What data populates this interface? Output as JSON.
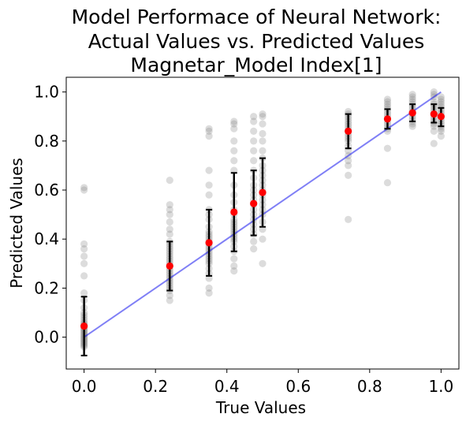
{
  "chart_data": {
    "type": "scatter",
    "title_lines": [
      "Model Performace of Neural Network:",
      "Actual Values vs. Predicted Values",
      "Magnetar_Model Index[1]"
    ],
    "xlabel": "True Values",
    "ylabel": "Predicted Values",
    "xlim": [
      -0.05,
      1.05
    ],
    "ylim": [
      -0.13,
      1.06
    ],
    "xticks": [
      0.0,
      0.2,
      0.4,
      0.6,
      0.8,
      1.0
    ],
    "xtick_labels": [
      "0.0",
      "0.2",
      "0.4",
      "0.6",
      "0.8",
      "1.0"
    ],
    "yticks": [
      0.0,
      0.2,
      0.4,
      0.6,
      0.8,
      1.0
    ],
    "ytick_labels": [
      "0.0",
      "0.2",
      "0.4",
      "0.6",
      "0.8",
      "1.0"
    ],
    "grid": false,
    "reference_line": {
      "x": [
        0.0,
        1.0
      ],
      "y": [
        0.0,
        1.0
      ]
    },
    "groups": [
      {
        "x": 0.0,
        "mean": 0.045,
        "err_low": -0.075,
        "err_high": 0.165,
        "points": [
          -0.04,
          -0.035,
          -0.03,
          -0.025,
          -0.02,
          -0.015,
          -0.01,
          -0.005,
          0.0,
          0.005,
          0.01,
          0.015,
          0.02,
          0.025,
          0.03,
          0.035,
          0.04,
          0.045,
          0.05,
          0.055,
          0.06,
          0.07,
          0.08,
          0.09,
          0.1,
          0.12,
          0.15,
          0.18,
          0.25,
          0.3,
          0.33,
          0.36,
          0.38,
          0.6,
          0.61
        ]
      },
      {
        "x": 0.24,
        "mean": 0.29,
        "err_low": 0.19,
        "err_high": 0.39,
        "points": [
          0.15,
          0.17,
          0.19,
          0.2,
          0.21,
          0.22,
          0.23,
          0.24,
          0.25,
          0.26,
          0.27,
          0.28,
          0.29,
          0.3,
          0.31,
          0.32,
          0.33,
          0.34,
          0.35,
          0.36,
          0.37,
          0.38,
          0.39,
          0.42,
          0.44,
          0.47,
          0.5,
          0.52,
          0.54,
          0.64
        ]
      },
      {
        "x": 0.35,
        "mean": 0.385,
        "err_low": 0.25,
        "err_high": 0.52,
        "points": [
          0.18,
          0.2,
          0.24,
          0.26,
          0.28,
          0.3,
          0.31,
          0.32,
          0.33,
          0.34,
          0.35,
          0.36,
          0.37,
          0.38,
          0.39,
          0.4,
          0.41,
          0.42,
          0.43,
          0.45,
          0.48,
          0.5,
          0.52,
          0.58,
          0.62,
          0.68,
          0.82,
          0.84,
          0.85
        ]
      },
      {
        "x": 0.42,
        "mean": 0.51,
        "err_low": 0.35,
        "err_high": 0.67,
        "points": [
          0.27,
          0.29,
          0.32,
          0.35,
          0.37,
          0.39,
          0.4,
          0.41,
          0.42,
          0.43,
          0.44,
          0.45,
          0.46,
          0.47,
          0.48,
          0.5,
          0.52,
          0.55,
          0.58,
          0.62,
          0.68,
          0.72,
          0.76,
          0.8,
          0.85,
          0.87,
          0.88
        ]
      },
      {
        "x": 0.475,
        "mean": 0.545,
        "err_low": 0.415,
        "err_high": 0.68,
        "points": [
          0.36,
          0.39,
          0.42,
          0.44,
          0.46,
          0.48,
          0.5,
          0.52,
          0.54,
          0.56,
          0.58,
          0.6,
          0.62,
          0.65,
          0.68,
          0.72,
          0.76,
          0.8,
          0.84,
          0.88,
          0.9
        ]
      },
      {
        "x": 0.5,
        "mean": 0.59,
        "err_low": 0.45,
        "err_high": 0.73,
        "points": [
          0.3,
          0.4,
          0.44,
          0.47,
          0.5,
          0.52,
          0.54,
          0.56,
          0.58,
          0.6,
          0.62,
          0.64,
          0.66,
          0.68,
          0.7,
          0.73,
          0.76,
          0.8,
          0.83,
          0.87,
          0.9,
          0.91
        ]
      },
      {
        "x": 0.74,
        "mean": 0.84,
        "err_low": 0.77,
        "err_high": 0.91,
        "points": [
          0.48,
          0.66,
          0.7,
          0.72,
          0.74,
          0.76,
          0.78,
          0.8,
          0.81,
          0.82,
          0.83,
          0.84,
          0.85,
          0.86,
          0.87,
          0.88,
          0.89,
          0.9,
          0.91,
          0.92
        ]
      },
      {
        "x": 0.85,
        "mean": 0.89,
        "err_low": 0.85,
        "err_high": 0.93,
        "points": [
          0.63,
          0.77,
          0.84,
          0.85,
          0.86,
          0.87,
          0.88,
          0.89,
          0.9,
          0.91,
          0.92,
          0.93,
          0.94,
          0.95,
          0.96,
          0.97
        ]
      },
      {
        "x": 0.92,
        "mean": 0.915,
        "err_low": 0.88,
        "err_high": 0.95,
        "points": [
          0.86,
          0.87,
          0.88,
          0.89,
          0.9,
          0.91,
          0.92,
          0.93,
          0.94,
          0.95,
          0.96,
          0.97,
          0.98,
          0.99
        ]
      },
      {
        "x": 0.98,
        "mean": 0.91,
        "err_low": 0.875,
        "err_high": 0.95,
        "points": [
          0.79,
          0.84,
          0.86,
          0.87,
          0.88,
          0.89,
          0.9,
          0.91,
          0.92,
          0.93,
          0.94,
          0.95,
          0.96,
          0.98,
          0.99,
          1.0
        ]
      },
      {
        "x": 1.0,
        "mean": 0.9,
        "err_low": 0.86,
        "err_high": 0.935,
        "points": [
          0.82,
          0.84,
          0.85,
          0.86,
          0.87,
          0.88,
          0.89,
          0.9,
          0.91,
          0.92,
          0.93,
          0.94,
          0.95,
          0.96,
          0.97,
          0.98
        ]
      }
    ],
    "colors": {
      "points": "#808080",
      "mean_marker": "#ff0000",
      "error_bar": "#000000",
      "reference_line": "#0000ee"
    }
  }
}
